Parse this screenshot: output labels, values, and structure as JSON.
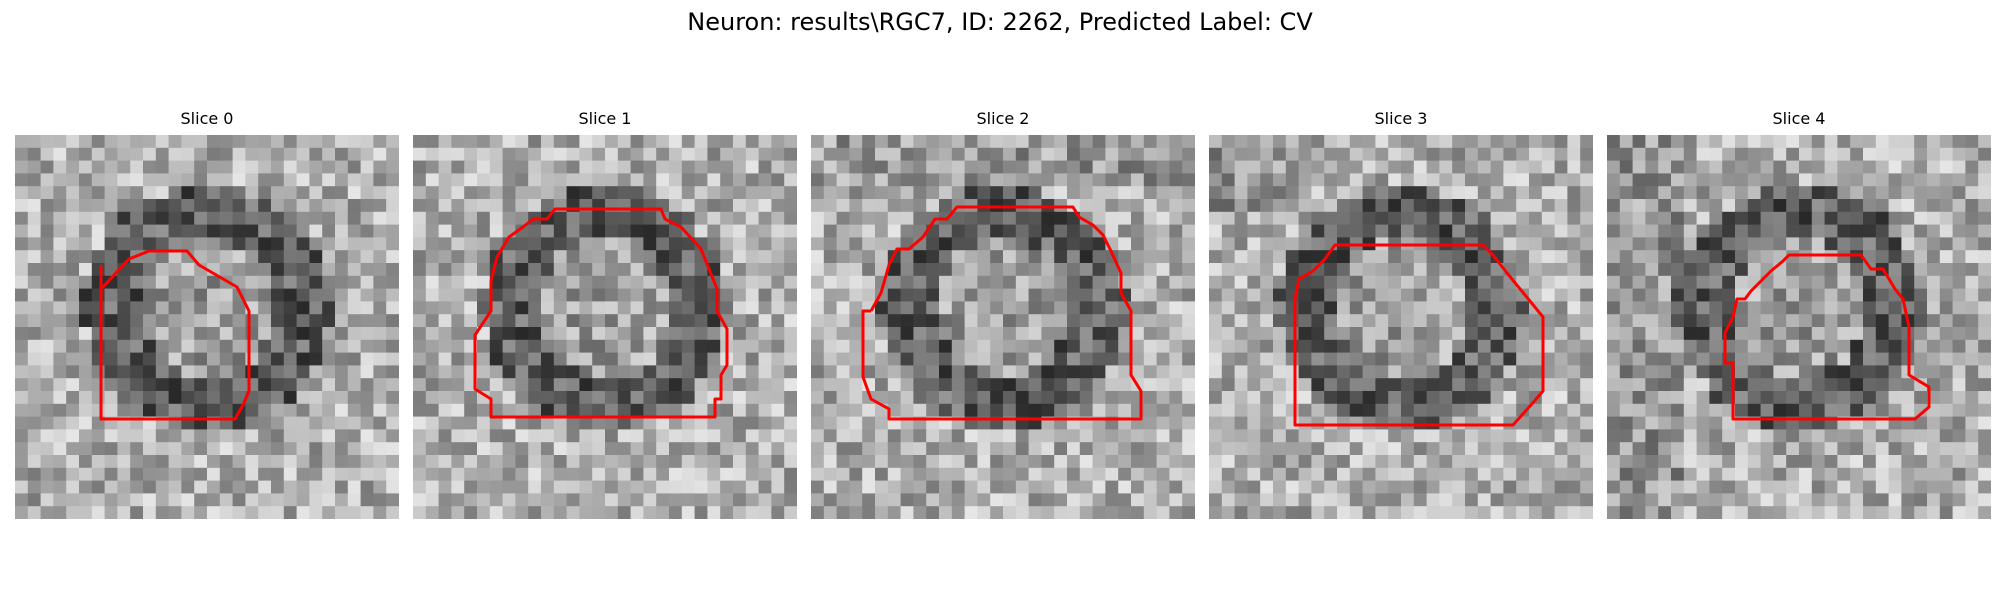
{
  "figure": {
    "title": "Neuron: results\\RGC7, ID: 2262, Predicted Label: CV"
  },
  "panels": [
    {
      "title": "Slice 0",
      "seed": 11,
      "grid": 30
    },
    {
      "title": "Slice 1",
      "seed": 23,
      "grid": 30
    },
    {
      "title": "Slice 2",
      "seed": 37,
      "grid": 30
    },
    {
      "title": "Slice 3",
      "seed": 41,
      "grid": 30
    },
    {
      "title": "Slice 4",
      "seed": 53,
      "grid": 30
    }
  ],
  "colors": {
    "contour": "#ff0000",
    "background": "#ffffff",
    "title_text": "#000000"
  }
}
